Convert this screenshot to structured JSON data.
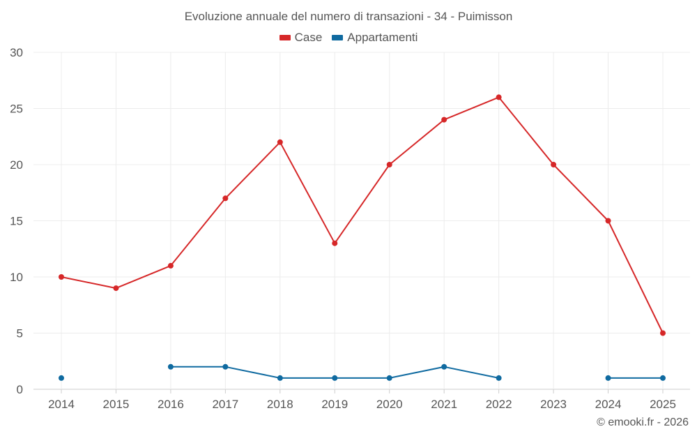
{
  "chart_data": {
    "type": "line",
    "title": "Evoluzione annuale del numero di transazioni - 34 - Puimisson",
    "categories": [
      "2014",
      "2015",
      "2016",
      "2017",
      "2018",
      "2019",
      "2020",
      "2021",
      "2022",
      "2023",
      "2024",
      "2025"
    ],
    "ylim": [
      0,
      30
    ],
    "yticks": [
      "0",
      "5",
      "10",
      "15",
      "20",
      "25",
      "30"
    ],
    "grid": true,
    "legend_position": "top-center",
    "series": [
      {
        "name": "Case",
        "color": "#d62728",
        "values": [
          10,
          9,
          11,
          17,
          22,
          13,
          20,
          24,
          26,
          20,
          15,
          5
        ]
      },
      {
        "name": "Appartamenti",
        "color": "#0f6aa0",
        "values": [
          1,
          null,
          2,
          2,
          1,
          1,
          1,
          2,
          1,
          null,
          1,
          1
        ]
      }
    ]
  },
  "footer": {
    "credit": "© emooki.fr - 2026"
  }
}
